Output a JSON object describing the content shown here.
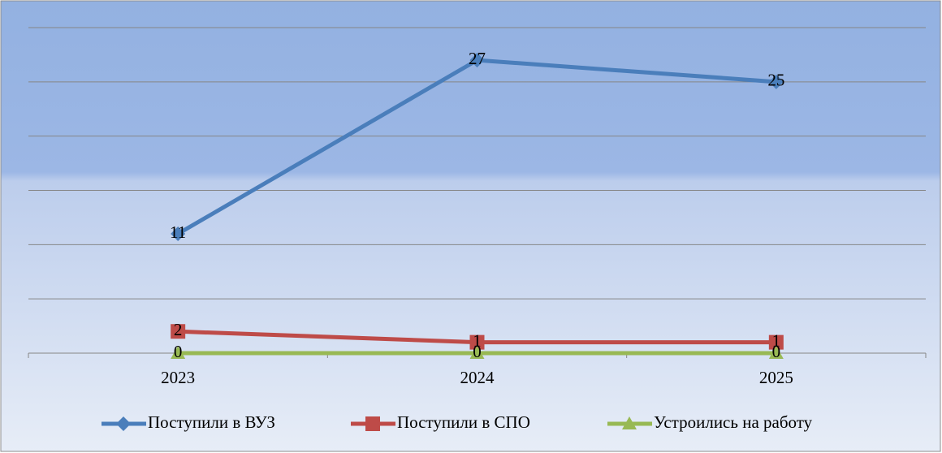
{
  "chart_data": {
    "type": "line",
    "categories": [
      "2023",
      "2024",
      "2025"
    ],
    "series": [
      {
        "name": "Поступили в ВУЗ",
        "color": "#4a7ebb",
        "marker": "diamond",
        "values": [
          11,
          27,
          25
        ]
      },
      {
        "name": "Поступили в СПО",
        "color": "#be4b48",
        "marker": "square",
        "values": [
          2,
          1,
          1
        ]
      },
      {
        "name": "Устроились на работу",
        "color": "#98b954",
        "marker": "triangle",
        "values": [
          0,
          0,
          0
        ]
      }
    ],
    "ylim": [
      0,
      30
    ],
    "yticks": [
      0,
      5,
      10,
      15,
      20,
      25,
      30
    ],
    "grid": true,
    "legend": "bottom",
    "data_labels": true
  }
}
